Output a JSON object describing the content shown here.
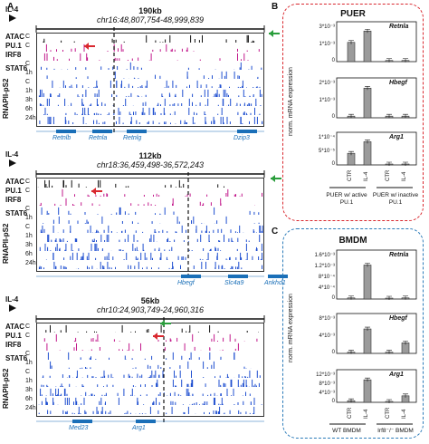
{
  "panels": {
    "A": "A",
    "B": "B",
    "C": "C"
  },
  "il4": "IL-4",
  "genome_blocks": [
    {
      "scale": "190kb",
      "coord": "chr16:48,807,754-48,999,839",
      "tracks": [
        "ATAC",
        "PU.1",
        "IRF8",
        "STAT6",
        "RNAPII-pS2"
      ],
      "timepoints": [
        "C",
        "1h",
        "3h",
        "6h",
        "24h"
      ],
      "genes": [
        "Retnlb",
        "Retnla",
        "Retnlg",
        "Dzip3"
      ]
    },
    {
      "scale": "112kb",
      "coord": "chr18:36,459,498-36,572,243",
      "tracks": [
        "ATAC",
        "PU.1",
        "IRF8",
        "STAT6",
        "RNAPII-pS2"
      ],
      "timepoints": [
        "C",
        "1h",
        "3h",
        "6h",
        "24h"
      ],
      "genes": [
        "Hbegf",
        "Slc4a9",
        "Ankhd1"
      ]
    },
    {
      "scale": "56kb",
      "coord": "chr10:24,903,749-24,960,316",
      "tracks": [
        "ATAC",
        "PU.1",
        "IRF8",
        "STAT6",
        "RNAPII-pS2"
      ],
      "timepoints": [
        "C",
        "1h",
        "3h",
        "6h",
        "24h"
      ],
      "genes": [
        "Med23",
        "Arg1"
      ]
    }
  ],
  "chart_data": [
    {
      "type": "bar",
      "panel": "B",
      "title": "PUER",
      "gene": "Retnla",
      "categories": [
        "CTR",
        "IL-4",
        "CTR",
        "IL-4"
      ],
      "values": [
        0.0017,
        0.0027,
        0.0001,
        0.0001
      ],
      "yticks": [
        "0",
        "1*10⁻³",
        "3*10⁻³"
      ]
    },
    {
      "type": "bar",
      "panel": "B",
      "title": "PUER",
      "gene": "Hbegf",
      "categories": [
        "CTR",
        "IL-4",
        "CTR",
        "IL-4"
      ],
      "values": [
        0.0001,
        0.0018,
        0.0001,
        0.0001
      ],
      "yticks": [
        "0",
        "1*10⁻³",
        "2*10⁻³"
      ]
    },
    {
      "type": "bar",
      "panel": "B",
      "title": "PUER",
      "gene": "Arg1",
      "categories": [
        "CTR",
        "IL-4",
        "CTR",
        "IL-4"
      ],
      "values": [
        4e-05,
        8e-05,
        2e-06,
        2e-06
      ],
      "yticks": [
        "0",
        "5*10⁻⁵",
        "1*10⁻⁴"
      ]
    },
    {
      "type": "bar",
      "panel": "C",
      "title": "BMDM",
      "gene": "Retnla",
      "categories": [
        "CTR",
        "IL-4",
        "CTR",
        "IL-4"
      ],
      "values": [
        4e-05,
        0.0012,
        2e-05,
        4e-05
      ],
      "yticks": [
        "0",
        "4*10⁻⁴",
        "8*10⁻⁴",
        "1.2*10⁻³",
        "1.6*10⁻³"
      ]
    },
    {
      "type": "bar",
      "panel": "C",
      "title": "BMDM",
      "gene": "Hbegf",
      "categories": [
        "CTR",
        "IL-4",
        "CTR",
        "IL-4"
      ],
      "values": [
        0.0003,
        0.0058,
        0.0003,
        0.0025
      ],
      "yticks": [
        "0",
        "4*10⁻³",
        "8*10⁻³"
      ]
    },
    {
      "type": "bar",
      "panel": "C",
      "title": "BMDM",
      "gene": "Arg1",
      "categories": [
        "CTR",
        "IL-4",
        "CTR",
        "IL-4"
      ],
      "values": [
        0.0007,
        0.0097,
        0.0002,
        0.0028
      ],
      "yticks": [
        "0",
        "4*10⁻³",
        "8*10⁻³",
        "12*10⁻³"
      ]
    }
  ],
  "b_ylabel": "norm. mRNA expression",
  "b_groups": [
    "PUER w/ active PU.1",
    "PUER w/ inactive PU.1"
  ],
  "c_groups": [
    "WT BMDM",
    "Irf8⁻/⁻ BMDM"
  ],
  "colors": {
    "red_box": "#d9282f",
    "blue_box": "#2b7bb9",
    "pu1": "#c2188b",
    "atac": "#111111",
    "rna": "#1f4fd0",
    "stat6": "#1f4fd0",
    "bar": "#9b9b9b"
  }
}
